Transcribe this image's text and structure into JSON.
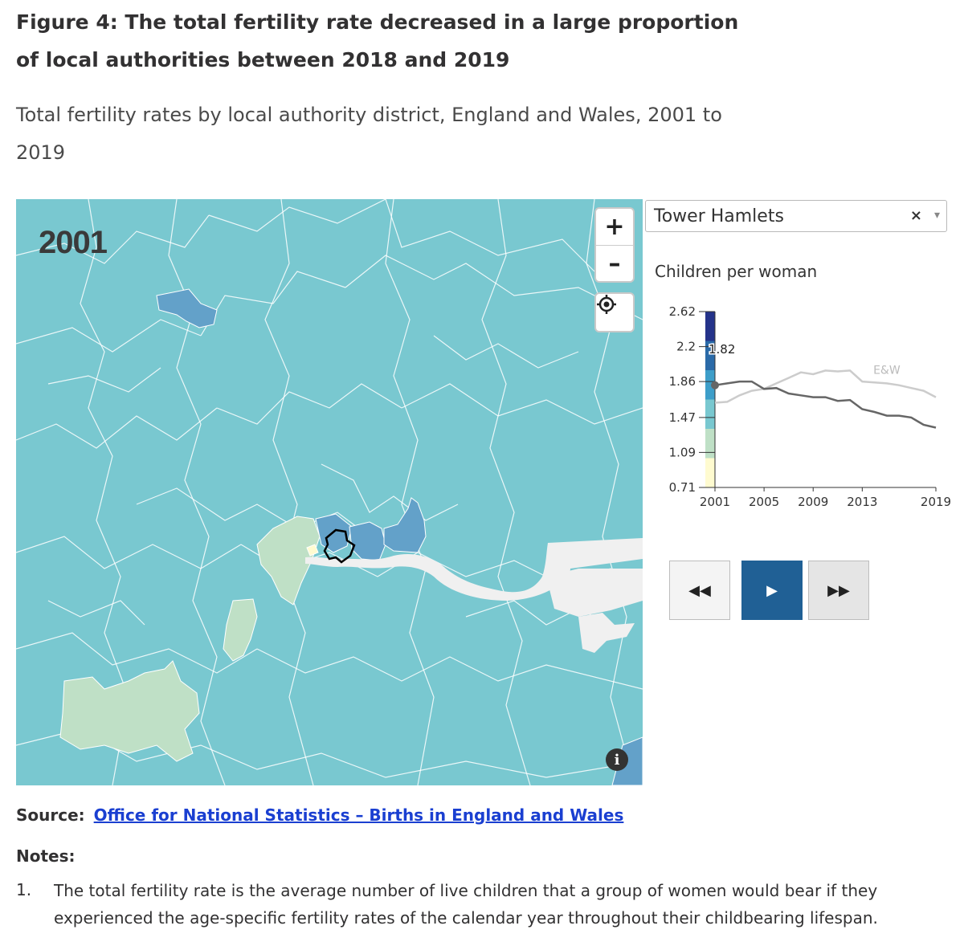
{
  "title": "Figure 4: The total fertility rate decreased in a large proportion of local authorities between 2018 and 2019",
  "subtitle": "Total fertility rates by local authority district, England and Wales, 2001 to 2019",
  "map": {
    "year": "2001",
    "zoom_in": "+",
    "zoom_out": "–",
    "info": "i",
    "colors": {
      "base": "#79c8d0",
      "light_green": "#bfe0c6",
      "mid_blue": "#63a1c9",
      "highlight_yellow": "#fffbd0",
      "water": "#f0f0f0",
      "boundary": "#ffffff",
      "selected_outline": "#000000"
    }
  },
  "selector": {
    "value": "Tower Hamlets",
    "clear": "×",
    "arrow": "▾"
  },
  "chart_label": "Children per woman",
  "chart_data": {
    "type": "line",
    "y_ticks": [
      "2.62",
      "2.2",
      "1.86",
      "1.47",
      "1.09",
      "0.71"
    ],
    "y_tick_values": [
      2.62,
      2.24,
      1.86,
      1.47,
      1.09,
      0.71
    ],
    "ylim": [
      0.71,
      2.62
    ],
    "x_ticks": [
      "2001",
      "2005",
      "2009",
      "2013",
      "2019"
    ],
    "x": [
      2001,
      2002,
      2003,
      2004,
      2005,
      2006,
      2007,
      2008,
      2009,
      2010,
      2011,
      2012,
      2013,
      2014,
      2015,
      2016,
      2017,
      2018,
      2019
    ],
    "series": [
      {
        "name": "Tower Hamlets",
        "values": [
          1.82,
          1.84,
          1.86,
          1.86,
          1.78,
          1.79,
          1.73,
          1.71,
          1.69,
          1.69,
          1.65,
          1.66,
          1.56,
          1.53,
          1.49,
          1.49,
          1.47,
          1.39,
          1.36
        ],
        "color": "#666666"
      },
      {
        "name": "E&W",
        "values": [
          1.63,
          1.64,
          1.71,
          1.76,
          1.78,
          1.84,
          1.9,
          1.96,
          1.94,
          1.98,
          1.97,
          1.98,
          1.86,
          1.85,
          1.84,
          1.82,
          1.79,
          1.76,
          1.69
        ],
        "color": "#cccccc"
      }
    ],
    "label_ew": "E&W",
    "current_value": "1.82",
    "legend_scale_colors": [
      "#fffbd0",
      "#bfe0c6",
      "#79c8d0",
      "#3d9ec9",
      "#2a6aa8",
      "#24338a"
    ]
  },
  "controls": {
    "back": "◀◀",
    "play": "▶",
    "forward": "▶▶"
  },
  "source": {
    "label": "Source:",
    "link": "Office for National Statistics – Births in England and Wales"
  },
  "notes": {
    "heading": "Notes:",
    "items": [
      {
        "num": "1.",
        "text": "The total fertility rate is the average number of live children that a group of women would bear if they experienced the age-specific fertility rates of the calendar year throughout their childbearing lifespan."
      }
    ]
  }
}
